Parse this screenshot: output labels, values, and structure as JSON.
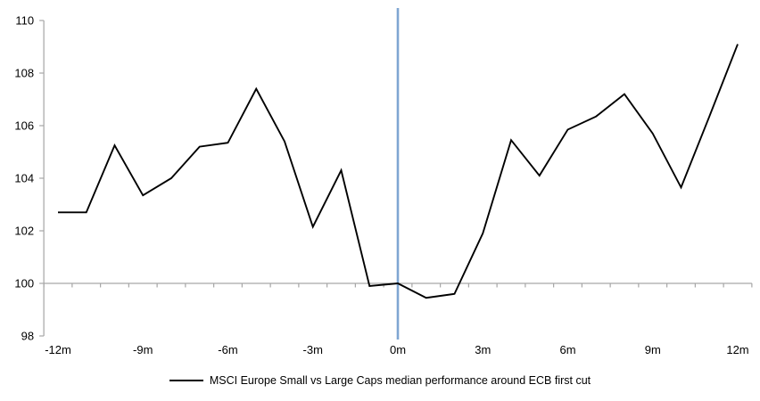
{
  "chart_data": {
    "type": "line",
    "title": "",
    "xlabel": "",
    "ylabel": "",
    "x": [
      -12,
      -11,
      -10,
      -9,
      -8,
      -7,
      -6,
      -5,
      -4,
      -3,
      -2,
      -1,
      0,
      1,
      2,
      3,
      4,
      5,
      6,
      7,
      8,
      9,
      10,
      11,
      12
    ],
    "series": [
      {
        "name": "MSCI Europe Small vs Large Caps median performance around ECB first cut",
        "values": [
          102.7,
          102.7,
          105.25,
          103.35,
          104.0,
          105.2,
          105.35,
          107.4,
          105.4,
          102.15,
          104.3,
          99.9,
          100.0,
          99.45,
          99.6,
          101.9,
          105.45,
          104.1,
          105.85,
          106.35,
          107.2,
          105.7,
          103.65,
          106.35,
          109.1
        ]
      }
    ],
    "x_tick_values": [
      -12,
      -9,
      -6,
      -3,
      0,
      3,
      6,
      9,
      12
    ],
    "x_tick_labels": [
      "-12m",
      "-9m",
      "-6m",
      "-3m",
      "0m",
      "3m",
      "6m",
      "9m",
      "12m"
    ],
    "y_ticks": [
      98,
      100,
      102,
      104,
      106,
      108,
      110
    ],
    "ylim": [
      98,
      110
    ],
    "xlim": [
      -12,
      12
    ],
    "baseline_value": 100,
    "event_line_x": 0,
    "grid": "off",
    "legend_position": "bottom-center",
    "colors": {
      "series_line": "#000000",
      "axis_line": "#A6A6A6",
      "event_line": "#7FA6D2",
      "label_text": "#000000"
    }
  }
}
